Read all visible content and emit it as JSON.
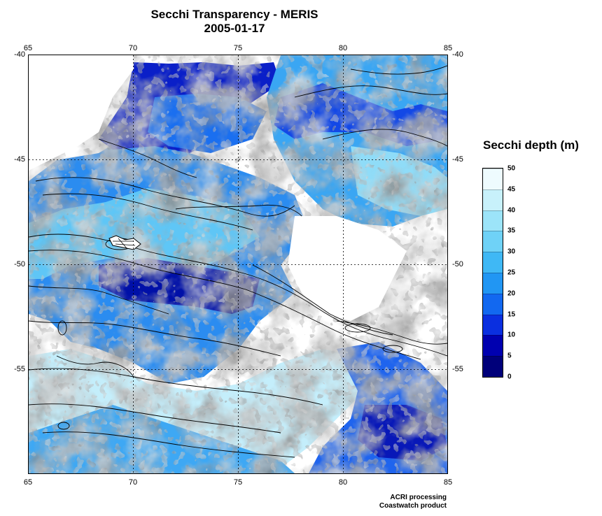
{
  "map": {
    "title": "Secchi Transparency - MERIS",
    "date": "2005-01-17",
    "lon_ticks": [
      "65",
      "70",
      "75",
      "80",
      "85"
    ],
    "lat_ticks": [
      "-40",
      "-45",
      "-50",
      "-55"
    ],
    "lon_range": [
      65,
      85
    ],
    "lat_range": [
      -60,
      -40
    ],
    "grid": "dashed"
  },
  "legend": {
    "title": "Secchi depth (m)",
    "tick_labels": [
      "50",
      "45",
      "40",
      "35",
      "30",
      "25",
      "20",
      "15",
      "10",
      "5",
      "0"
    ],
    "colors": [
      "#00007a",
      "#0000b0",
      "#0a2fe0",
      "#1268f0",
      "#2196f3",
      "#3fb8f5",
      "#6fd2f7",
      "#9ce4f9",
      "#c8f1fb",
      "#eefbfe"
    ]
  },
  "credits": {
    "line1": "ACRI processing",
    "line2": "Coastwatch product"
  }
}
